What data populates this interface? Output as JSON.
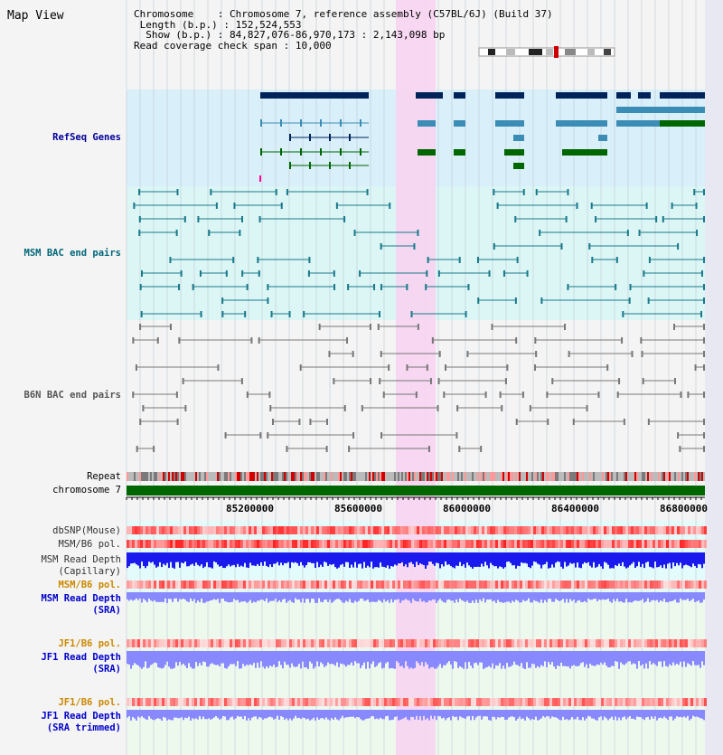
{
  "header": {
    "title": "Map View",
    "chromosome_label": "Chromosome",
    "chromosome_value": "Chromosome 7, reference assembly (C57BL/6J) (Build 37)",
    "length_label": "Length (b.p.)",
    "length_value": "152,524,553",
    "show_label": "Show (b.p.)",
    "show_value": "84,827,076-86,970,173 : 2,143,098 bp",
    "coverage_label": "Read coverage check span",
    "coverage_value": "10,000"
  },
  "tracks": {
    "refseq": "RefSeq Genes",
    "msm_bac": "MSM BAC end pairs",
    "b6n_bac": "B6N BAC end pairs",
    "repeat": "Repeat",
    "chromosome": "chromosome 7",
    "dbsnp": "dbSNP(Mouse)",
    "msm_b6_pol_1": "MSM/B6 pol.",
    "msm_depth_cap_1": "MSM Read Depth",
    "msm_depth_cap_2": "(Capillary)",
    "msm_b6_pol_2": "MSM/B6 pol.",
    "msm_depth_sra_1": "MSM Read Depth",
    "msm_depth_sra_2": "(SRA)",
    "jf1_b6_pol_1": "JF1/B6 pol.",
    "jf1_depth_sra_1": "JF1 Read Depth",
    "jf1_depth_sra_2": "(SRA)",
    "jf1_b6_pol_2": "JF1/B6 pol.",
    "jf1_depth_trim_1": "JF1 Read Depth",
    "jf1_depth_trim_2": "(SRA trimmed)"
  },
  "axis": {
    "ticks": [
      "85200000",
      "85600000",
      "86000000",
      "86400000",
      "86800000"
    ]
  },
  "colors": {
    "refseq_label": "#000099",
    "msm_bac_label": "#006677",
    "b6n_bac_label": "#555555",
    "msm_pol_label": "#cc8800",
    "depth_label": "#0000cc",
    "highlight": "#f7d4f1",
    "gene_dark": "#00245a",
    "gene_mid": "#3b8db5",
    "gene_green": "#006600",
    "chrom_green": "#006600",
    "depth_dark": "#1a1aee",
    "depth_light": "#8888ff"
  }
}
